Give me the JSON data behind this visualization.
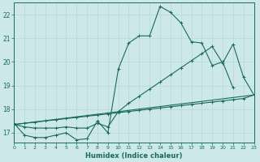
{
  "xlabel": "Humidex (Indice chaleur)",
  "bg_color": "#cce8e8",
  "grid_color": "#b8d8d8",
  "line_color": "#1a6b5a",
  "xlim": [
    0,
    23
  ],
  "ylim": [
    16.6,
    22.5
  ],
  "xticks": [
    0,
    1,
    2,
    3,
    4,
    5,
    6,
    7,
    8,
    9,
    10,
    11,
    12,
    13,
    14,
    15,
    16,
    17,
    18,
    19,
    20,
    21,
    22,
    23
  ],
  "yticks": [
    17,
    18,
    19,
    20,
    21,
    22
  ],
  "line1_x": [
    0,
    1,
    2,
    3,
    4,
    5,
    6,
    7,
    8,
    9,
    10,
    11,
    12,
    13,
    14,
    15,
    16,
    17,
    18,
    19,
    20,
    21
  ],
  "line1_y": [
    17.4,
    16.9,
    16.8,
    16.8,
    16.9,
    17.0,
    16.7,
    16.75,
    17.5,
    17.0,
    19.7,
    20.8,
    21.1,
    21.1,
    22.35,
    22.1,
    21.65,
    20.85,
    20.8,
    19.85,
    20.0,
    18.9
  ],
  "line2_x": [
    0,
    1,
    2,
    3,
    4,
    5,
    6,
    7,
    8,
    9,
    10,
    11,
    12,
    13,
    14,
    15,
    16,
    17,
    18,
    19,
    20,
    21,
    22,
    23
  ],
  "line2_y": [
    17.35,
    17.4,
    17.45,
    17.5,
    17.55,
    17.6,
    17.65,
    17.7,
    17.75,
    17.8,
    17.85,
    17.9,
    17.95,
    18.0,
    18.05,
    18.1,
    18.15,
    18.2,
    18.25,
    18.3,
    18.35,
    18.4,
    18.45,
    18.6
  ],
  "line3_x": [
    0,
    1,
    2,
    3,
    4,
    5,
    6,
    7,
    8,
    9,
    10,
    11,
    12,
    13,
    14,
    15,
    16,
    17,
    18,
    19,
    20,
    21,
    22,
    23
  ],
  "line3_y": [
    17.35,
    17.25,
    17.2,
    17.2,
    17.2,
    17.25,
    17.2,
    17.2,
    17.4,
    17.25,
    17.9,
    18.25,
    18.55,
    18.85,
    19.15,
    19.45,
    19.75,
    20.05,
    20.35,
    20.65,
    19.95,
    20.75,
    19.35,
    18.6
  ],
  "line4_x": [
    0,
    23
  ],
  "line4_y": [
    17.35,
    18.6
  ]
}
